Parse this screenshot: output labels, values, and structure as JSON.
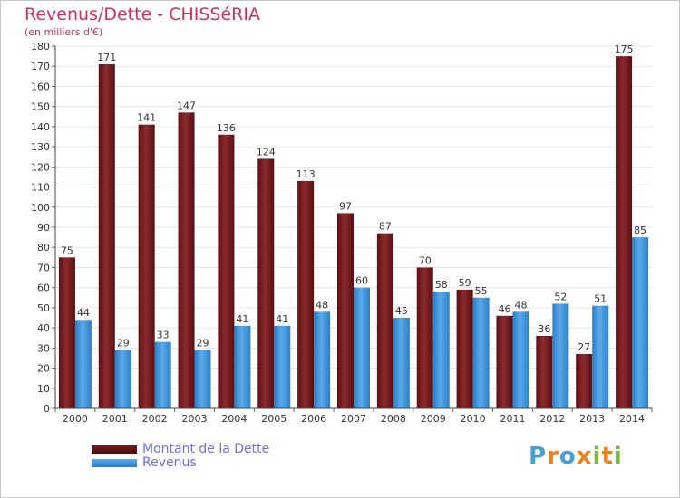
{
  "title": "Revenus/Dette - CHISSéRIA",
  "subtitle": "(en milliers d'€)",
  "brand": {
    "text": "Proxiti",
    "colors": [
      "#4a9fd6",
      "#e8821e",
      "#4a9fd6",
      "#e8821e",
      "#7ab83c",
      "#e8821e",
      "#7ab83c"
    ]
  },
  "colors": {
    "dette": "#7a1c1f",
    "revenus": "#3a8fd6",
    "title": "#c8325a",
    "legend_text": "#6d6fe0"
  },
  "chart_data": {
    "type": "bar",
    "title": "Revenus/Dette - CHISSéRIA",
    "subtitle": "(en milliers d'€)",
    "xlabel": "",
    "ylabel": "",
    "ylim": [
      0,
      180
    ],
    "ytick_step": 10,
    "grid": true,
    "legend_position": "bottom-left",
    "categories": [
      "2000",
      "2001",
      "2002",
      "2003",
      "2004",
      "2005",
      "2006",
      "2007",
      "2008",
      "2009",
      "2010",
      "2011",
      "2012",
      "2013",
      "2014"
    ],
    "series": [
      {
        "name": "Montant de la Dette",
        "values": [
          75,
          171,
          141,
          147,
          136,
          124,
          113,
          97,
          87,
          70,
          59,
          46,
          36,
          27,
          175
        ]
      },
      {
        "name": "Revenus",
        "values": [
          44,
          29,
          33,
          29,
          41,
          41,
          48,
          60,
          45,
          58,
          55,
          48,
          52,
          51,
          85
        ]
      }
    ]
  }
}
